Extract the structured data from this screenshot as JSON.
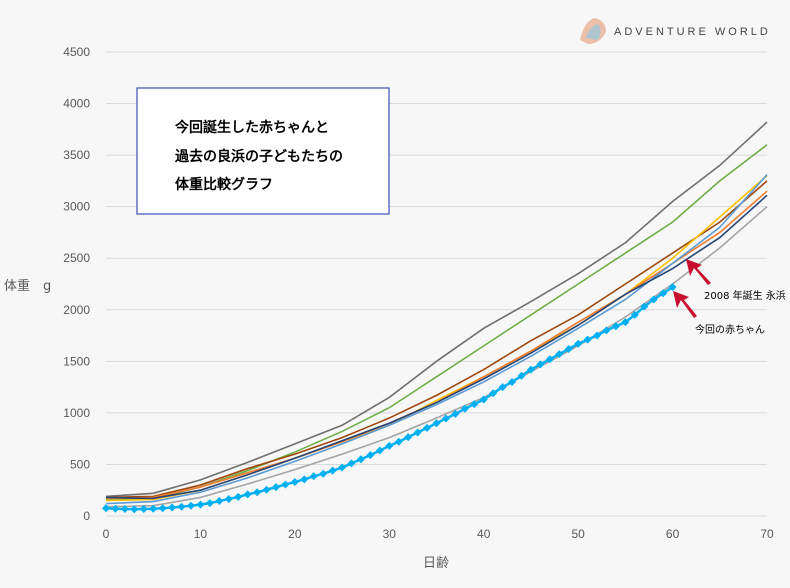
{
  "logo": {
    "text": "ADVENTURE WORLD"
  },
  "chart_data": {
    "type": "line",
    "title_box": [
      "今回誕生した赤ちゃんと",
      "過去の良浜の子どもたちの",
      "体重比較グラフ"
    ],
    "xlabel": "日齢",
    "ylabel": "体重　g",
    "xlim": [
      0,
      70
    ],
    "ylim": [
      0,
      4500
    ],
    "xticks": [
      0,
      10,
      20,
      30,
      40,
      50,
      60,
      70
    ],
    "yticks": [
      0,
      500,
      1000,
      1500,
      2000,
      2500,
      3000,
      3500,
      4000,
      4500
    ],
    "grid": "horizontal",
    "series_x": [
      0,
      5,
      10,
      15,
      20,
      25,
      30,
      35,
      40,
      45,
      50,
      55,
      60,
      65,
      70
    ],
    "series": [
      {
        "name": "sibling-dark-gray",
        "color": "#6f6f6f",
        "values": [
          190,
          220,
          350,
          520,
          700,
          880,
          1150,
          1500,
          1820,
          2080,
          2350,
          2650,
          3050,
          3400,
          3820
        ]
      },
      {
        "name": "sibling-green",
        "color": "#70ad47",
        "values": [
          160,
          170,
          280,
          440,
          620,
          820,
          1050,
          1350,
          1650,
          1950,
          2250,
          2550,
          2850,
          3250,
          3600
        ]
      },
      {
        "name": "sibling-brown",
        "color": "#9e480e",
        "values": [
          180,
          190,
          300,
          460,
          600,
          760,
          950,
          1170,
          1420,
          1700,
          1950,
          2250,
          2550,
          2850,
          3250
        ]
      },
      {
        "name": "sibling-yellow",
        "color": "#ffc000",
        "values": [
          150,
          160,
          250,
          400,
          560,
          720,
          880,
          1120,
          1350,
          1600,
          1850,
          2150,
          2500,
          2900,
          3300
        ]
      },
      {
        "name": "sibling-orange",
        "color": "#ed7d31",
        "values": [
          170,
          180,
          280,
          420,
          560,
          720,
          900,
          1100,
          1350,
          1600,
          1880,
          2150,
          2450,
          2750,
          3150
        ]
      },
      {
        "name": "sibling-light-blue",
        "color": "#5b9bd5",
        "values": [
          120,
          140,
          230,
          370,
          530,
          700,
          880,
          1080,
          1300,
          1550,
          1820,
          2100,
          2450,
          2800,
          3310
        ]
      },
      {
        "name": "sibling-navy",
        "color": "#264478",
        "values": [
          180,
          170,
          250,
          400,
          560,
          730,
          900,
          1100,
          1330,
          1580,
          1850,
          2150,
          2400,
          2700,
          3110
        ]
      },
      {
        "name": "2008 年誕生 永浜",
        "color": "#a5a5a5",
        "values": [
          90,
          100,
          180,
          310,
          450,
          600,
          760,
          950,
          1150,
          1400,
          1650,
          1930,
          2250,
          2600,
          3000
        ]
      }
    ],
    "current": {
      "name": "今回の赤ちゃん",
      "color": "#00b0f0",
      "values": [
        75,
        70,
        68,
        66,
        68,
        70,
        75,
        82,
        90,
        100,
        110,
        125,
        145,
        165,
        185,
        210,
        230,
        255,
        280,
        305,
        330,
        355,
        385,
        410,
        440,
        470,
        510,
        550,
        590,
        635,
        680,
        720,
        765,
        810,
        855,
        900,
        945,
        990,
        1040,
        1085,
        1130,
        1190,
        1250,
        1300,
        1360,
        1420,
        1470,
        1520,
        1570,
        1620,
        1670,
        1710,
        1750,
        1800,
        1840,
        1880,
        1950,
        2030,
        2100,
        2160,
        2220
      ]
    },
    "annotations": [
      {
        "text": "2008 年誕生  永浜",
        "target_series": "2008 年誕生 永浜",
        "color": "#c8102e"
      },
      {
        "text": "今回の赤ちゃん",
        "target_series": "今回の赤ちゃん",
        "color": "#c8102e"
      }
    ]
  }
}
